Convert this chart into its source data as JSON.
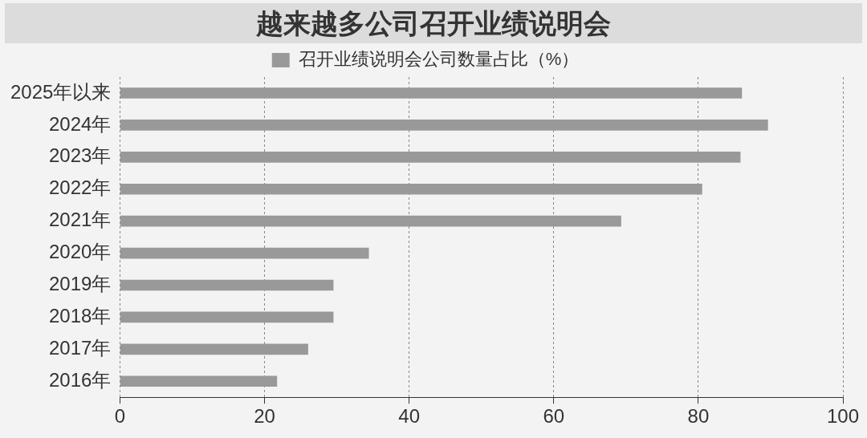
{
  "chart_data": {
    "type": "bar",
    "orientation": "horizontal",
    "title": "越来越多公司召开业绩说明会",
    "categories": [
      "2025年以来",
      "2024年",
      "2023年",
      "2022年",
      "2021年",
      "2020年",
      "2019年",
      "2018年",
      "2017年",
      "2016年"
    ],
    "series": [
      {
        "name": "召开业绩说明会公司数量占比（%）",
        "color": "#999999",
        "values": [
          86.0,
          89.6,
          85.8,
          80.5,
          69.3,
          34.4,
          29.5,
          29.5,
          26.0,
          21.7
        ]
      }
    ],
    "xlim": [
      0,
      100
    ],
    "xticks": [
      0,
      20,
      40,
      60,
      80,
      100
    ],
    "grid": "x",
    "legend": "top"
  }
}
